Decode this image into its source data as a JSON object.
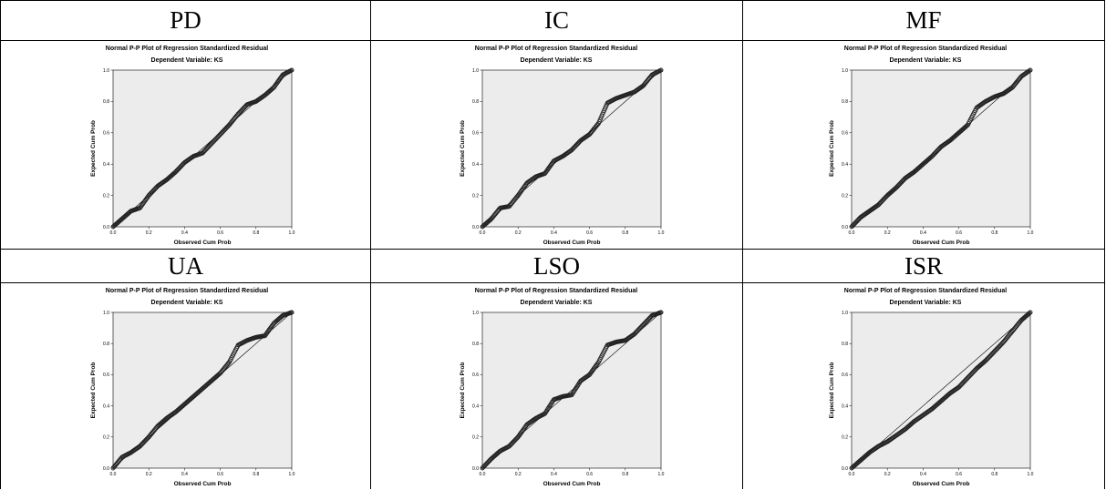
{
  "table": {
    "headers": [
      "PD",
      "IC",
      "MF",
      "UA",
      "LSO",
      "ISR"
    ]
  },
  "colors": {
    "plot_background": "#ececec",
    "points": "#222222",
    "line": "#000000"
  },
  "chart_data": [
    {
      "panel": "PD",
      "type": "scatter",
      "title": "Normal P-P Plot of Regression Standardized Residual",
      "subtitle": "Dependent Variable: KS",
      "xlabel": "Observed Cum Prob",
      "ylabel": "Expected Cum Prob",
      "xlim": [
        0,
        1
      ],
      "ylim": [
        0,
        1
      ],
      "xticks": [
        "0.0",
        "0.2",
        "0.4",
        "0.6",
        "0.8",
        "1.0"
      ],
      "yticks": [
        "0.0",
        "0.2",
        "0.4",
        "0.6",
        "0.8",
        "1.0"
      ],
      "reference_line": [
        [
          0,
          0
        ],
        [
          1,
          1
        ]
      ],
      "curve": [
        [
          0,
          0
        ],
        [
          0.05,
          0.05
        ],
        [
          0.1,
          0.1
        ],
        [
          0.15,
          0.12
        ],
        [
          0.2,
          0.2
        ],
        [
          0.25,
          0.26
        ],
        [
          0.3,
          0.3
        ],
        [
          0.35,
          0.35
        ],
        [
          0.4,
          0.41
        ],
        [
          0.45,
          0.45
        ],
        [
          0.5,
          0.47
        ],
        [
          0.55,
          0.53
        ],
        [
          0.6,
          0.59
        ],
        [
          0.65,
          0.65
        ],
        [
          0.7,
          0.72
        ],
        [
          0.75,
          0.78
        ],
        [
          0.8,
          0.8
        ],
        [
          0.85,
          0.84
        ],
        [
          0.9,
          0.89
        ],
        [
          0.95,
          0.97
        ],
        [
          1,
          1
        ]
      ]
    },
    {
      "panel": "IC",
      "type": "scatter",
      "title": "Normal P-P Plot of Regression Standardized Residual",
      "subtitle": "Dependent Variable: KS",
      "xlabel": "Observed Cum Prob",
      "ylabel": "Expected Cum Prob",
      "xlim": [
        0,
        1
      ],
      "ylim": [
        0,
        1
      ],
      "xticks": [
        "0.0",
        "0.2",
        "0.4",
        "0.6",
        "0.8",
        "1.0"
      ],
      "yticks": [
        "0.0",
        "0.2",
        "0.4",
        "0.6",
        "0.8",
        "1.0"
      ],
      "reference_line": [
        [
          0,
          0
        ],
        [
          1,
          1
        ]
      ],
      "curve": [
        [
          0,
          0
        ],
        [
          0.05,
          0.05
        ],
        [
          0.1,
          0.12
        ],
        [
          0.15,
          0.13
        ],
        [
          0.2,
          0.2
        ],
        [
          0.25,
          0.28
        ],
        [
          0.3,
          0.32
        ],
        [
          0.35,
          0.34
        ],
        [
          0.4,
          0.42
        ],
        [
          0.45,
          0.45
        ],
        [
          0.5,
          0.49
        ],
        [
          0.55,
          0.55
        ],
        [
          0.6,
          0.59
        ],
        [
          0.65,
          0.66
        ],
        [
          0.7,
          0.79
        ],
        [
          0.75,
          0.82
        ],
        [
          0.8,
          0.84
        ],
        [
          0.85,
          0.86
        ],
        [
          0.9,
          0.9
        ],
        [
          0.95,
          0.97
        ],
        [
          1,
          1
        ]
      ]
    },
    {
      "panel": "MF",
      "type": "scatter",
      "title": "Normal P-P Plot of Regression Standardized Residual",
      "subtitle": "Dependent Variable: KS",
      "xlabel": "Observed Cum Prob",
      "ylabel": "Expected Cum Prob",
      "xlim": [
        0,
        1
      ],
      "ylim": [
        0,
        1
      ],
      "xticks": [
        "0.0",
        "0.2",
        "0.4",
        "0.6",
        "0.8",
        "1.0"
      ],
      "yticks": [
        "0.0",
        "0.2",
        "0.4",
        "0.6",
        "0.8",
        "1.0"
      ],
      "reference_line": [
        [
          0,
          0
        ],
        [
          1,
          1
        ]
      ],
      "curve": [
        [
          0,
          0
        ],
        [
          0.05,
          0.06
        ],
        [
          0.1,
          0.1
        ],
        [
          0.15,
          0.14
        ],
        [
          0.2,
          0.2
        ],
        [
          0.25,
          0.25
        ],
        [
          0.3,
          0.31
        ],
        [
          0.35,
          0.35
        ],
        [
          0.4,
          0.4
        ],
        [
          0.45,
          0.45
        ],
        [
          0.5,
          0.51
        ],
        [
          0.55,
          0.55
        ],
        [
          0.6,
          0.6
        ],
        [
          0.65,
          0.65
        ],
        [
          0.7,
          0.76
        ],
        [
          0.75,
          0.8
        ],
        [
          0.8,
          0.83
        ],
        [
          0.85,
          0.85
        ],
        [
          0.9,
          0.89
        ],
        [
          0.95,
          0.96
        ],
        [
          1,
          1
        ]
      ]
    },
    {
      "panel": "UA",
      "type": "scatter",
      "title": "Normal P-P Plot of Regression Standardized Residual",
      "subtitle": "Dependent Variable: KS",
      "xlabel": "Observed Cum Prob",
      "ylabel": "Expected Cum Prob",
      "xlim": [
        0,
        1
      ],
      "ylim": [
        0,
        1
      ],
      "xticks": [
        "0.0",
        "0.2",
        "0.4",
        "0.6",
        "0.8",
        "1.0"
      ],
      "yticks": [
        "0.0",
        "0.2",
        "0.4",
        "0.6",
        "0.8",
        "1.0"
      ],
      "reference_line": [
        [
          0,
          0
        ],
        [
          1,
          1
        ]
      ],
      "curve": [
        [
          0,
          0
        ],
        [
          0.05,
          0.07
        ],
        [
          0.1,
          0.1
        ],
        [
          0.15,
          0.14
        ],
        [
          0.2,
          0.2
        ],
        [
          0.25,
          0.27
        ],
        [
          0.3,
          0.32
        ],
        [
          0.35,
          0.36
        ],
        [
          0.4,
          0.41
        ],
        [
          0.45,
          0.46
        ],
        [
          0.5,
          0.51
        ],
        [
          0.55,
          0.56
        ],
        [
          0.6,
          0.61
        ],
        [
          0.65,
          0.68
        ],
        [
          0.7,
          0.79
        ],
        [
          0.75,
          0.82
        ],
        [
          0.8,
          0.84
        ],
        [
          0.85,
          0.85
        ],
        [
          0.9,
          0.93
        ],
        [
          0.95,
          0.98
        ],
        [
          1,
          1
        ]
      ]
    },
    {
      "panel": "LSO",
      "type": "scatter",
      "title": "Normal P-P Plot of Regression Standardized Residual",
      "subtitle": "Dependent Variable: KS",
      "xlabel": "Observed Cum Prob",
      "ylabel": "Expected Cum Prob",
      "xlim": [
        0,
        1
      ],
      "ylim": [
        0,
        1
      ],
      "xticks": [
        "0.0",
        "0.2",
        "0.4",
        "0.6",
        "0.8",
        "1.0"
      ],
      "yticks": [
        "0.0",
        "0.2",
        "0.4",
        "0.6",
        "0.8",
        "1.0"
      ],
      "reference_line": [
        [
          0,
          0
        ],
        [
          1,
          1
        ]
      ],
      "curve": [
        [
          0,
          0
        ],
        [
          0.05,
          0.06
        ],
        [
          0.1,
          0.11
        ],
        [
          0.15,
          0.14
        ],
        [
          0.2,
          0.2
        ],
        [
          0.25,
          0.28
        ],
        [
          0.3,
          0.32
        ],
        [
          0.35,
          0.35
        ],
        [
          0.4,
          0.44
        ],
        [
          0.45,
          0.46
        ],
        [
          0.5,
          0.47
        ],
        [
          0.55,
          0.56
        ],
        [
          0.6,
          0.6
        ],
        [
          0.65,
          0.68
        ],
        [
          0.7,
          0.79
        ],
        [
          0.75,
          0.81
        ],
        [
          0.8,
          0.82
        ],
        [
          0.85,
          0.86
        ],
        [
          0.9,
          0.92
        ],
        [
          0.95,
          0.98
        ],
        [
          1,
          1
        ]
      ]
    },
    {
      "panel": "ISR",
      "type": "scatter",
      "title": "Normal P-P Plot of Regression Standardized Residual",
      "subtitle": "Dependent Variable: KS",
      "xlabel": "Observed Cum Prob",
      "ylabel": "Expected Cum Prob",
      "xlim": [
        0,
        1
      ],
      "ylim": [
        0,
        1
      ],
      "xticks": [
        "0.0",
        "0.2",
        "0.4",
        "0.6",
        "0.8",
        "1.0"
      ],
      "yticks": [
        "0.0",
        "0.2",
        "0.4",
        "0.6",
        "0.8",
        "1.0"
      ],
      "reference_line": [
        [
          0,
          0
        ],
        [
          1,
          1
        ]
      ],
      "curve": [
        [
          0,
          0
        ],
        [
          0.05,
          0.05
        ],
        [
          0.1,
          0.1
        ],
        [
          0.15,
          0.14
        ],
        [
          0.2,
          0.17
        ],
        [
          0.25,
          0.21
        ],
        [
          0.3,
          0.25
        ],
        [
          0.35,
          0.3
        ],
        [
          0.4,
          0.34
        ],
        [
          0.45,
          0.38
        ],
        [
          0.5,
          0.43
        ],
        [
          0.55,
          0.48
        ],
        [
          0.6,
          0.52
        ],
        [
          0.65,
          0.58
        ],
        [
          0.7,
          0.64
        ],
        [
          0.75,
          0.69
        ],
        [
          0.8,
          0.75
        ],
        [
          0.85,
          0.81
        ],
        [
          0.9,
          0.88
        ],
        [
          0.95,
          0.95
        ],
        [
          1,
          1
        ]
      ]
    }
  ]
}
